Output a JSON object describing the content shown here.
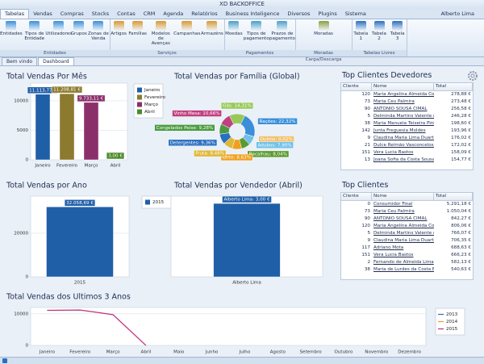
{
  "window": {
    "title": "XD BACKOFFICE",
    "user": "Alberto Lima"
  },
  "menu": [
    "Tabelas",
    "Vendas",
    "Compras",
    "Stocks",
    "Contas",
    "CRM",
    "Agenda",
    "Relatórios",
    "Business Inteligence",
    "Diversos",
    "Plugins",
    "Sistema"
  ],
  "ribbon": [
    {
      "name": "Entidades",
      "buttons": [
        "Entidades",
        "Tipos de Entidade",
        "Utilizadores",
        "Grupos",
        "Zonas de Venda"
      ]
    },
    {
      "name": "Serviços",
      "buttons": [
        "Artigos",
        "Famílias",
        "Modelos de Avenças",
        "Campanhas",
        "Armazéns"
      ]
    },
    {
      "name": "Pagamentos",
      "buttons": [
        "Moedas",
        "Tipos de pagamento",
        "Prazos de pagamento"
      ]
    },
    {
      "name": "Moradas Carga/Descarga",
      "buttons": [
        "Moradas"
      ]
    },
    {
      "name": "Tabelas Livres",
      "buttons": [
        "Tabela 1",
        "Tabela 2",
        "Tabela 3"
      ]
    }
  ],
  "doc_tabs": [
    "Bem vindo",
    "Dashboard"
  ],
  "chart_data": [
    {
      "type": "bar",
      "title": "Total Vendas Por Mês",
      "categories": [
        "Janeiro",
        "Fevereiro",
        "Março",
        "Abril"
      ],
      "values": [
        11113.77,
        11208.81,
        9733.11,
        3.0
      ],
      "value_labels": [
        "11.113,77 €",
        "11.208,81 €",
        "9.733,11 €",
        "3,00 €"
      ],
      "colors": [
        "#1f5fa8",
        "#8c7a2e",
        "#8b2f6b",
        "#4a8a2a"
      ],
      "ylim": [
        0,
        13000
      ],
      "yticks": [
        0,
        5000,
        10000
      ],
      "grid": true,
      "legend": "right"
    },
    {
      "type": "pie",
      "title": "Total Vendas por Família (Global)",
      "values": [
        14.31,
        22.32,
        0.02,
        7.9,
        8.04,
        8.63,
        8.48,
        9.36,
        9.28,
        10.66
      ],
      "value_labels": [
        "Gás: 14,31%",
        "Rações: 22,32%",
        "Outros: 0,02%",
        "Adubos: 7,90%",
        "Bacalhau: 8,04%",
        "Leite: 8,63%",
        "Fruta: 8,48%",
        "Detergentes: 9,36%",
        "Congelados Peixe: 9,28%",
        "Vinho Mesa: 10,66%"
      ],
      "colors": [
        "#98c858",
        "#3a8fd8",
        "#f0c070",
        "#70c0e8",
        "#5a9a30",
        "#f0a020",
        "#e0b838",
        "#2a70c0",
        "#4a9a40",
        "#c04080"
      ]
    },
    {
      "type": "bar",
      "title": "Total Vendas por Ano",
      "categories": [
        "2015"
      ],
      "values": [
        32058.69
      ],
      "value_labels": [
        "32.058,69 €"
      ],
      "colors": [
        "#1f5fa8"
      ],
      "ylim": [
        0,
        37000
      ],
      "yticks": [
        0,
        20000
      ],
      "grid": true,
      "legend": "right"
    },
    {
      "type": "bar",
      "title": "Total Vendas por Vendedor (Abril)",
      "categories": [
        "Alberto Lima"
      ],
      "values": [
        3.0
      ],
      "value_labels": [
        "Alberto Lima: 3,00 €"
      ],
      "colors": [
        "#1f5fa8"
      ],
      "ylim": [
        0,
        3.3
      ]
    },
    {
      "type": "line",
      "title": "Total Vendas dos Ultimos 3 Anos",
      "categories": [
        "Janeiro",
        "Fevereiro",
        "Março",
        "Abril",
        "Maio",
        "Junho",
        "Julho",
        "Agosto",
        "Setembro",
        "Outubro",
        "Novembro",
        "Dezembro"
      ],
      "series": [
        {
          "name": "2013",
          "color": "#2a6fc0",
          "values": [
            null,
            null,
            null,
            null,
            null,
            null,
            null,
            null,
            null,
            null,
            null,
            null
          ]
        },
        {
          "name": "2014",
          "color": "#e0a030",
          "values": [
            null,
            null,
            null,
            null,
            null,
            null,
            null,
            null,
            null,
            null,
            null,
            null
          ]
        },
        {
          "name": "2015",
          "color": "#c0307a",
          "values": [
            11113.77,
            11208.81,
            9733.11,
            3.0,
            null,
            null,
            null,
            null,
            null,
            null,
            null,
            null
          ]
        }
      ],
      "ylim": [
        0,
        12000
      ],
      "yticks": [
        0,
        10000
      ],
      "grid": true,
      "legend": "right"
    }
  ],
  "tables": [
    {
      "title": "Top Clientes Devedores",
      "columns": [
        "Cliente",
        "Nome",
        "Total"
      ],
      "rows": [
        [
          120,
          "Maria Angelina Almeida Coe",
          "278,88 €"
        ],
        [
          73,
          "Maria Ceu Palmira",
          "273,48 €"
        ],
        [
          90,
          "ANTONIO SOUSA CIMAL",
          "256,58 €"
        ],
        [
          5,
          "Delminda Martins Valente do",
          "246,28 €"
        ],
        [
          38,
          "Maria Manuela Teixeira Pinh",
          "198,60 €"
        ],
        [
          142,
          "Junta Freguesia Moldes",
          "193,96 €"
        ],
        [
          9,
          "Claudina Maria Lima Duarte",
          "176,02 €"
        ],
        [
          21,
          "Dulce Reimão Vasconcelos N",
          "172,02 €"
        ],
        [
          151,
          "Vera Lucia Bastos",
          "158,09 €"
        ],
        [
          13,
          "Joana Sofia da Costa Sousa",
          "154,77 €"
        ]
      ]
    },
    {
      "title": "Top Clientes",
      "columns": [
        "Cliente",
        "Nome",
        "Total"
      ],
      "rows": [
        [
          0,
          "Consumidor Final",
          "5.291,18 €"
        ],
        [
          73,
          "Maria Ceu Palmira",
          "1.050,04 €"
        ],
        [
          90,
          "ANTONIO SOUSA CIMAL",
          "842,27 €"
        ],
        [
          120,
          "Maria Angelina Almeida Coe",
          "806,06 €"
        ],
        [
          5,
          "Delminda Martins Valente do",
          "766,07 €"
        ],
        [
          9,
          "Claudina Maria Lima Duarte",
          "706,35 €"
        ],
        [
          117,
          "Adriano Mota",
          "688,63 €"
        ],
        [
          151,
          "Vera Lucia Bastos",
          "666,23 €"
        ],
        [
          2,
          "Fernando de Almeida Lima",
          "582,13 €"
        ],
        [
          38,
          "Maria de Lurdes da Costa Ba",
          "540,63 €"
        ]
      ]
    }
  ]
}
